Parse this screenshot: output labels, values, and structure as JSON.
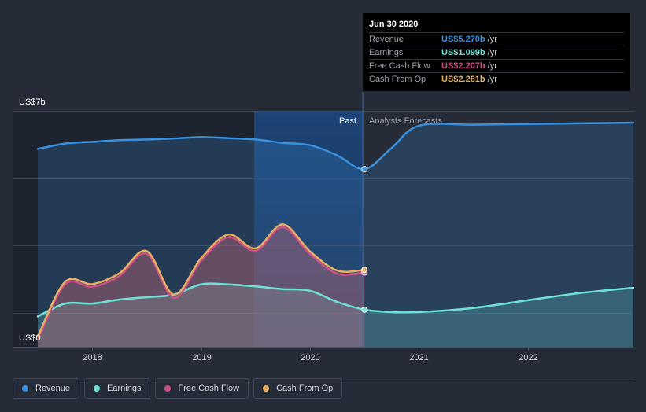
{
  "chart_data": {
    "type": "line",
    "y_axis": {
      "label_top": "US$7b",
      "label_bottom": "US$0",
      "ylim": [
        0,
        7
      ]
    },
    "x_axis": {
      "ticks": [
        "2018",
        "2019",
        "2020",
        "2021",
        "2022"
      ],
      "xlim": [
        2017.5,
        2022.97
      ]
    },
    "regions": {
      "past_label": "Past",
      "forecast_label": "Analysts Forecasts",
      "divider_x": 2020.5
    },
    "series": [
      {
        "name": "Revenue",
        "color": "#3a91e0",
        "x": [
          2017.5,
          2017.75,
          2018.0,
          2018.25,
          2018.5,
          2018.75,
          2019.0,
          2019.25,
          2019.5,
          2019.75,
          2020.0,
          2020.25,
          2020.5,
          2020.75,
          2021.0,
          2021.5,
          2022.0,
          2022.5,
          2022.97
        ],
        "values": [
          5.87,
          6.03,
          6.08,
          6.13,
          6.15,
          6.18,
          6.22,
          6.19,
          6.15,
          6.05,
          5.98,
          5.68,
          5.27,
          5.9,
          6.56,
          6.59,
          6.61,
          6.63,
          6.65
        ]
      },
      {
        "name": "Earnings",
        "color": "#6ee0d4",
        "x": [
          2017.5,
          2017.75,
          2018.0,
          2018.25,
          2018.5,
          2018.75,
          2019.0,
          2019.25,
          2019.5,
          2019.75,
          2020.0,
          2020.25,
          2020.5,
          2020.75,
          2021.0,
          2021.5,
          2022.0,
          2022.5,
          2022.97
        ],
        "values": [
          0.9,
          1.28,
          1.28,
          1.4,
          1.47,
          1.55,
          1.85,
          1.85,
          1.79,
          1.71,
          1.66,
          1.33,
          1.1,
          1.03,
          1.03,
          1.15,
          1.38,
          1.6,
          1.75
        ]
      },
      {
        "name": "Free Cash Flow",
        "color": "#d0508a",
        "x": [
          2017.5,
          2017.75,
          2018.0,
          2018.25,
          2018.5,
          2018.75,
          2019.0,
          2019.25,
          2019.5,
          2019.75,
          2020.0,
          2020.25,
          2020.5
        ],
        "values": [
          0.2,
          1.85,
          1.78,
          2.1,
          2.76,
          1.45,
          2.55,
          3.25,
          2.85,
          3.55,
          2.75,
          2.17,
          2.207
        ]
      },
      {
        "name": "Cash From Op",
        "color": "#e6b060",
        "x": [
          2017.5,
          2017.75,
          2018.0,
          2018.25,
          2018.5,
          2018.75,
          2019.0,
          2019.25,
          2019.5,
          2019.75,
          2020.0,
          2020.25,
          2020.5
        ],
        "values": [
          0.3,
          1.92,
          1.86,
          2.18,
          2.84,
          1.55,
          2.63,
          3.33,
          2.92,
          3.63,
          2.83,
          2.26,
          2.281
        ]
      }
    ],
    "tooltip": {
      "date": "Jun 30 2020",
      "rows": [
        {
          "name": "Revenue",
          "value": "US$5.270b",
          "unit": "/yr",
          "color": "#3a91e0"
        },
        {
          "name": "Earnings",
          "value": "US$1.099b",
          "unit": "/yr",
          "color": "#6ee0d4"
        },
        {
          "name": "Free Cash Flow",
          "value": "US$2.207b",
          "unit": "/yr",
          "color": "#d0508a"
        },
        {
          "name": "Cash From Op",
          "value": "US$2.281b",
          "unit": "/yr",
          "color": "#e6b060"
        }
      ]
    },
    "legend": [
      {
        "label": "Revenue",
        "color": "#3a91e0"
      },
      {
        "label": "Earnings",
        "color": "#6ee0d4"
      },
      {
        "label": "Free Cash Flow",
        "color": "#d0508a"
      },
      {
        "label": "Cash From Op",
        "color": "#e6b060"
      }
    ]
  }
}
